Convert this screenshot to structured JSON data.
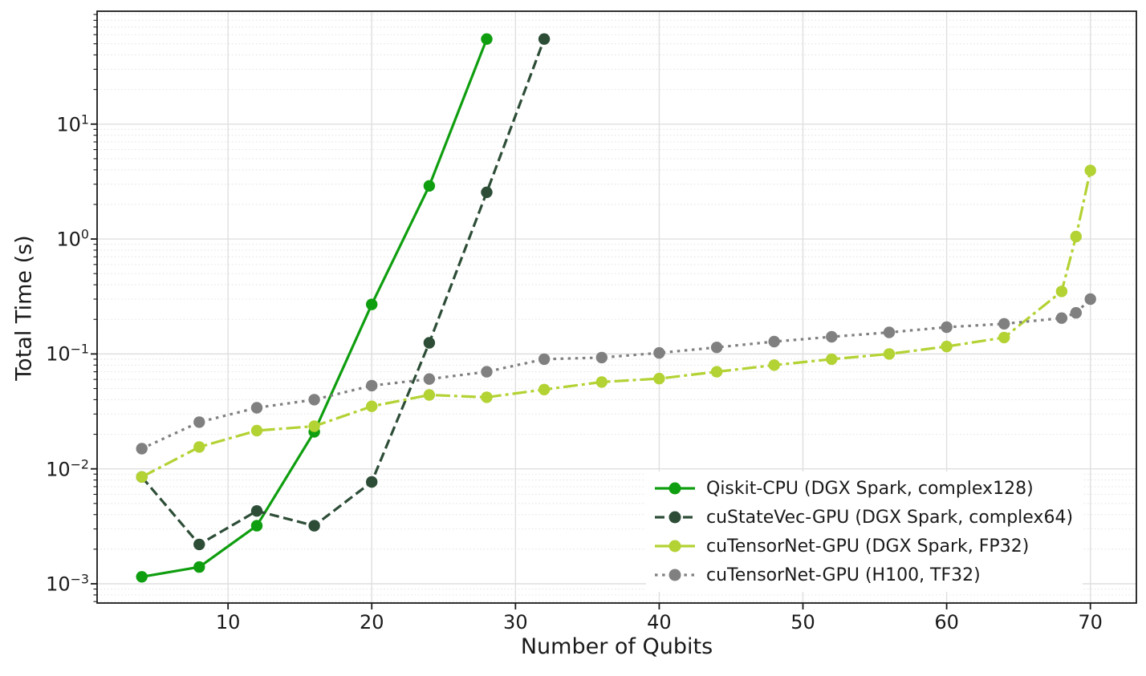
{
  "chart_data": {
    "type": "line",
    "title": "",
    "xlabel": "Number of Qubits",
    "ylabel": "Total Time (s)",
    "x_scale": "linear",
    "y_scale": "log",
    "xlim": [
      0.89,
      73.2
    ],
    "ylim": [
      0.00068,
      96
    ],
    "x_ticks": [
      10,
      20,
      30,
      40,
      50,
      60,
      70
    ],
    "y_ticks": [
      {
        "value": 10,
        "mantissa": "10",
        "exponent": "1"
      },
      {
        "value": 1,
        "mantissa": "10",
        "exponent": "0"
      },
      {
        "value": 0.1,
        "mantissa": "10",
        "exponent": "−1"
      },
      {
        "value": 0.01,
        "mantissa": "10",
        "exponent": "−2"
      },
      {
        "value": 0.001,
        "mantissa": "10",
        "exponent": "−3"
      }
    ],
    "grid": {
      "major_on": true,
      "minor_on": true,
      "major_color": "#dfdfdf",
      "minor_color": "#e6e6e6",
      "minor_style": "dotted",
      "minor_mantissas": [
        2,
        3,
        4,
        5,
        6,
        7,
        8,
        9
      ]
    },
    "axis_color": "#1a1a1a",
    "background": "#ffffff",
    "series": [
      {
        "id": "qiskit-cpu",
        "name": "Qiskit-CPU (DGX Spark, complex128)",
        "color": "#0f9e0f",
        "line_style": "solid",
        "marker": "circle",
        "x": [
          4,
          8,
          12,
          16,
          20,
          24,
          28
        ],
        "y": [
          0.00115,
          0.0014,
          0.0032,
          0.021,
          0.27,
          2.9,
          55
        ]
      },
      {
        "id": "custatevec-gpu",
        "name": "cuStateVec-GPU (DGX Spark, complex64)",
        "color": "#2d4d37",
        "line_style": "dashed",
        "marker": "circle",
        "x": [
          4,
          8,
          12,
          16,
          20,
          24,
          28,
          32
        ],
        "y": [
          0.0085,
          0.0022,
          0.0043,
          0.0032,
          0.0077,
          0.125,
          2.55,
          55
        ]
      },
      {
        "id": "cutensornet-dgx",
        "name": "cuTensorNet-GPU (DGX Spark, FP32)",
        "color": "#b3d233",
        "line_style": "dashdot",
        "marker": "circle",
        "x": [
          4,
          8,
          12,
          16,
          20,
          24,
          28,
          32,
          36,
          40,
          44,
          48,
          52,
          56,
          60,
          64,
          68,
          69,
          70
        ],
        "y": [
          0.0085,
          0.0155,
          0.0215,
          0.0235,
          0.035,
          0.044,
          0.042,
          0.049,
          0.057,
          0.061,
          0.07,
          0.08,
          0.09,
          0.1,
          0.116,
          0.139,
          0.35,
          1.05,
          3.95
        ]
      },
      {
        "id": "cutensornet-h100",
        "name": "cuTensorNet-GPU (H100, TF32)",
        "color": "#808080",
        "line_style": "dotted",
        "marker": "circle",
        "x": [
          4,
          8,
          12,
          16,
          20,
          24,
          28,
          32,
          36,
          40,
          44,
          48,
          52,
          56,
          60,
          64,
          68,
          69,
          70
        ],
        "y": [
          0.015,
          0.0255,
          0.034,
          0.04,
          0.053,
          0.0605,
          0.07,
          0.09,
          0.093,
          0.102,
          0.114,
          0.128,
          0.141,
          0.154,
          0.171,
          0.183,
          0.205,
          0.228,
          0.3
        ]
      }
    ],
    "legend": {
      "location": "lower right",
      "background": "#ffffff",
      "entries": [
        "Qiskit-CPU (DGX Spark, complex128)",
        "cuStateVec-GPU (DGX Spark, complex64)",
        "cuTensorNet-GPU (DGX Spark, FP32)",
        "cuTensorNet-GPU (H100, TF32)"
      ]
    }
  }
}
